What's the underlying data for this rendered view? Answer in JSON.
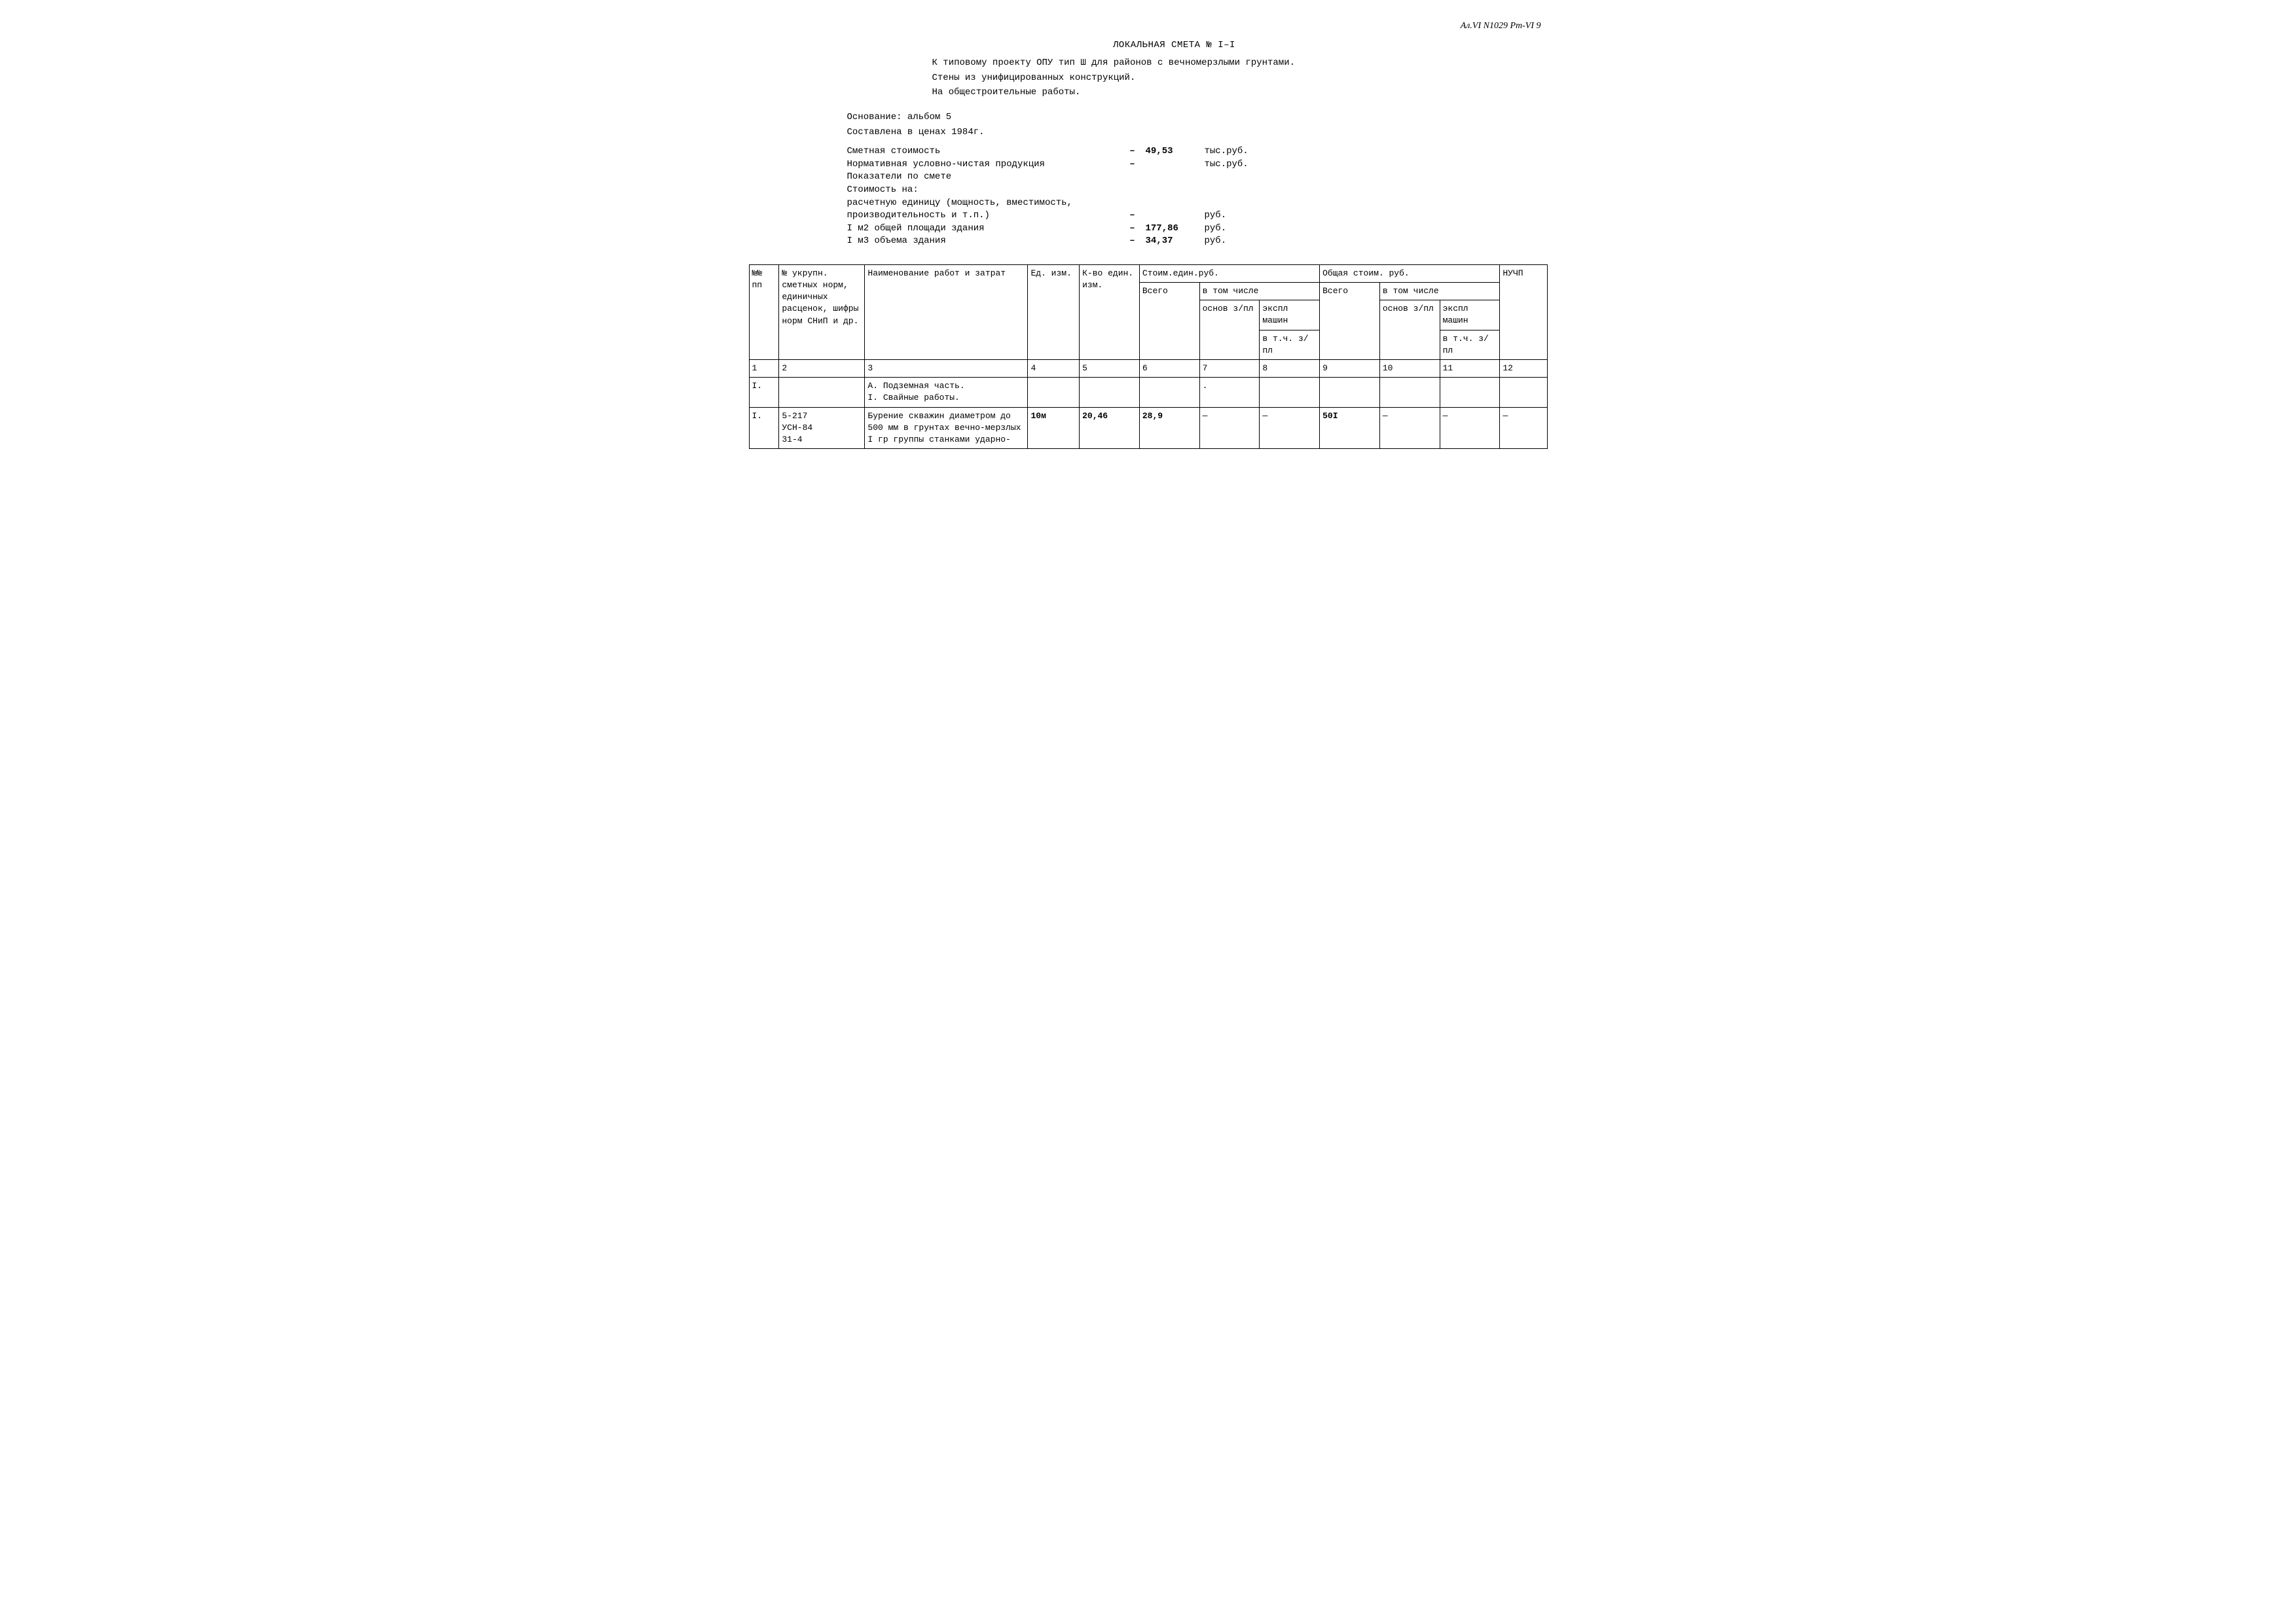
{
  "topRight": "Ал.VI N1029 Рт-VI 9",
  "title": "ЛОКАЛЬНАЯ СМЕТА № I–I",
  "intro": [
    "К типовому проекту ОПУ тип Ш для районов с вечномерзлыми грунтами.",
    "Стены из унифицированных конструкций.",
    "На общестроительные работы."
  ],
  "basis": [
    "Основание: альбом 5",
    "Составлена в ценах 1984г."
  ],
  "summary": [
    {
      "label": "Сметная стоимость",
      "dash": "–",
      "value": "49,53",
      "unit": "тыс.руб."
    },
    {
      "label": "Нормативная условно-чистая продукция",
      "dash": "–",
      "value": "",
      "unit": "тыс.руб."
    },
    {
      "label": "Показатели по смете",
      "dash": "",
      "value": "",
      "unit": ""
    },
    {
      "label": "Стоимость на:",
      "dash": "",
      "value": "",
      "unit": ""
    },
    {
      "label": "расчетную единицу (мощность, вместимость,",
      "dash": "",
      "value": "",
      "unit": ""
    },
    {
      "label": "производительность и т.п.)",
      "dash": "–",
      "value": "",
      "unit": "руб."
    },
    {
      "label": "I м2 общей площади здания",
      "dash": "–",
      "value": "177,86",
      "unit": "руб."
    },
    {
      "label": "I м3 объема здания",
      "dash": "–",
      "value": "34,37",
      "unit": "руб."
    }
  ],
  "headers": {
    "c1": "№№ пп",
    "c2": "№ укрупн. сметных норм, единичных расценок, шифры норм СНиП и др.",
    "c3": "Наименование работ и затрат",
    "c4": "Ед. изм.",
    "c5": "К-во един. изм.",
    "g1": "Стоим.един.руб.",
    "c6": "Всего",
    "g2": "в том числе",
    "c7": "основ з/пл",
    "c8a": "экспл машин",
    "c8b": "в т.ч. з/пл",
    "g3": "Общая стоим. руб.",
    "c9": "Всего",
    "g4": "в том числе",
    "c10": "основ з/пл",
    "c11a": "экспл машин",
    "c11b": "в т.ч. з/пл",
    "c12": "НУЧП"
  },
  "colNums": [
    "1",
    "2",
    "3",
    "4",
    "5",
    "6",
    "7",
    "8",
    "9",
    "10",
    "11",
    "12"
  ],
  "rows": [
    {
      "c1": "I.",
      "c2": "",
      "c3": "А. Подземная часть.\nI. Свайные работы.",
      "c4": "",
      "c5": "",
      "c6": "",
      "c7": ".",
      "c8": "",
      "c9": "",
      "c10": "",
      "c11": "",
      "c12": ""
    },
    {
      "c1": "I.",
      "c2": "5-217\nУСН-84\n31-4",
      "c3": "Бурение скважин диаметром до 500 мм в грунтах вечно-мерзлых I гр группы станками ударно-",
      "c4": "10м",
      "c5": "20,46",
      "c6": "28,9",
      "c7": "—",
      "c8": "—",
      "c9": "50I",
      "c10": "—",
      "c11": "—",
      "c12": "—"
    }
  ]
}
